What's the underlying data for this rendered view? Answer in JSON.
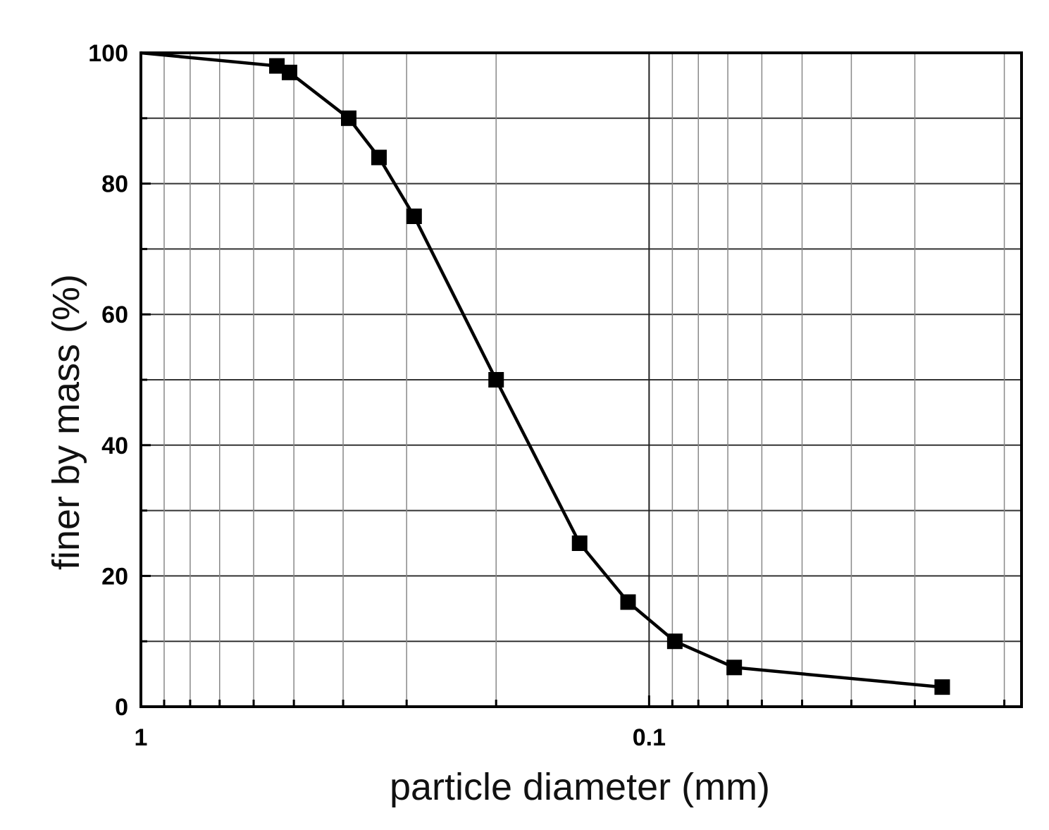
{
  "chart_data": {
    "type": "line",
    "xlabel": "particle diameter (mm)",
    "ylabel": "finer by mass (%)",
    "xscale": "log",
    "xaxis_direction": "reversed",
    "xlim": [
      1,
      0.0185
    ],
    "ylim": [
      0,
      100
    ],
    "grid": true,
    "xticks": [
      {
        "value": 1,
        "label": "1"
      },
      {
        "value": 0.1,
        "label": "0.1"
      }
    ],
    "yticks": [
      {
        "value": 0,
        "label": "0"
      },
      {
        "value": 20,
        "label": "20"
      },
      {
        "value": 40,
        "label": "40"
      },
      {
        "value": 60,
        "label": "60"
      },
      {
        "value": 80,
        "label": "80"
      },
      {
        "value": 100,
        "label": "100"
      }
    ],
    "series": [
      {
        "marker": "square",
        "color": "#000000",
        "x": [
          1.0,
          0.54,
          0.51,
          0.39,
          0.34,
          0.29,
          0.2,
          0.137,
          0.11,
          0.089,
          0.068,
          0.0265
        ],
        "y": [
          100,
          98,
          97,
          90,
          84,
          75,
          50,
          25,
          16,
          10,
          6,
          3
        ],
        "markers_from_index": 1
      }
    ]
  }
}
